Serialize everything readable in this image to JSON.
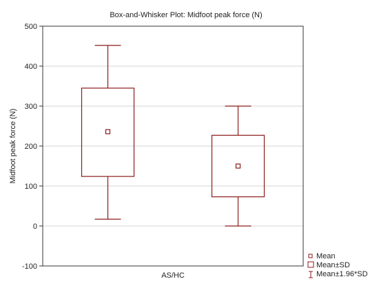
{
  "chart_data": {
    "type": "box",
    "title": "Box-and-Whisker Plot: Midfoot peak force (N)",
    "xlabel": "AS/HC",
    "ylabel": "Midfoot peak force (N)",
    "ylim": [
      -100,
      500
    ],
    "yticks": [
      -100,
      0,
      100,
      200,
      300,
      400,
      500
    ],
    "ytick_labels": [
      "-100",
      "0",
      "100",
      "200",
      "300",
      "400",
      "500"
    ],
    "grid": true,
    "legend_position": "bottom-right",
    "legend": {
      "mean": "Mean",
      "sd": "Mean±SD",
      "ci": "Mean±1.96*SD"
    },
    "series_color": "#8b1a1a",
    "boxes": [
      {
        "mean": 236,
        "sd_low": 124,
        "sd_high": 345,
        "ci_low": 17,
        "ci_high": 452
      },
      {
        "mean": 150,
        "sd_low": 73,
        "sd_high": 227,
        "ci_low": 0,
        "ci_high": 300
      }
    ]
  }
}
